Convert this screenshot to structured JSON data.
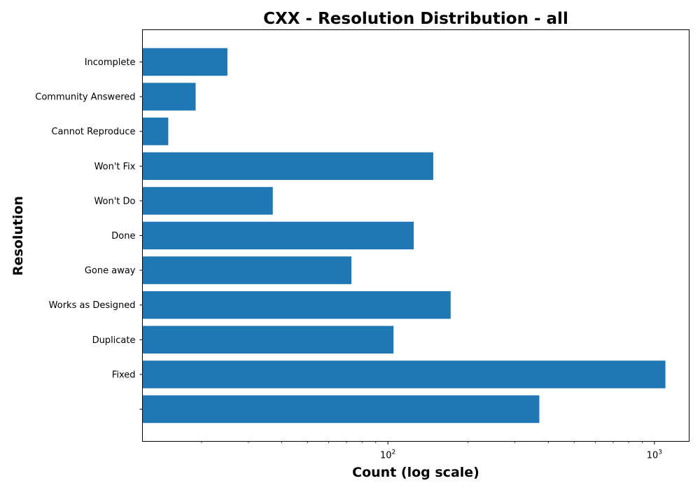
{
  "chart_data": {
    "type": "bar",
    "orientation": "horizontal",
    "title": "CXX - Resolution Distribution - all",
    "xlabel": "Count (log scale)",
    "ylabel": "Resolution",
    "xscale": "log",
    "xlim": [
      12,
      1350
    ],
    "x_ticks": [
      {
        "value": 100,
        "base": "10",
        "exp": "2"
      },
      {
        "value": 1000,
        "base": "10",
        "exp": "3"
      }
    ],
    "categories": [
      "",
      "Fixed",
      "Duplicate",
      "Works as Designed",
      "Gone away",
      "Done",
      "Won't Do",
      "Won't Fix",
      "Cannot Reproduce",
      "Community Answered",
      "Incomplete"
    ],
    "values": [
      370,
      1100,
      105,
      172,
      73,
      125,
      37,
      148,
      15,
      19,
      25
    ],
    "bar_color": "#1f77b4",
    "grid": false,
    "legend": "none"
  }
}
